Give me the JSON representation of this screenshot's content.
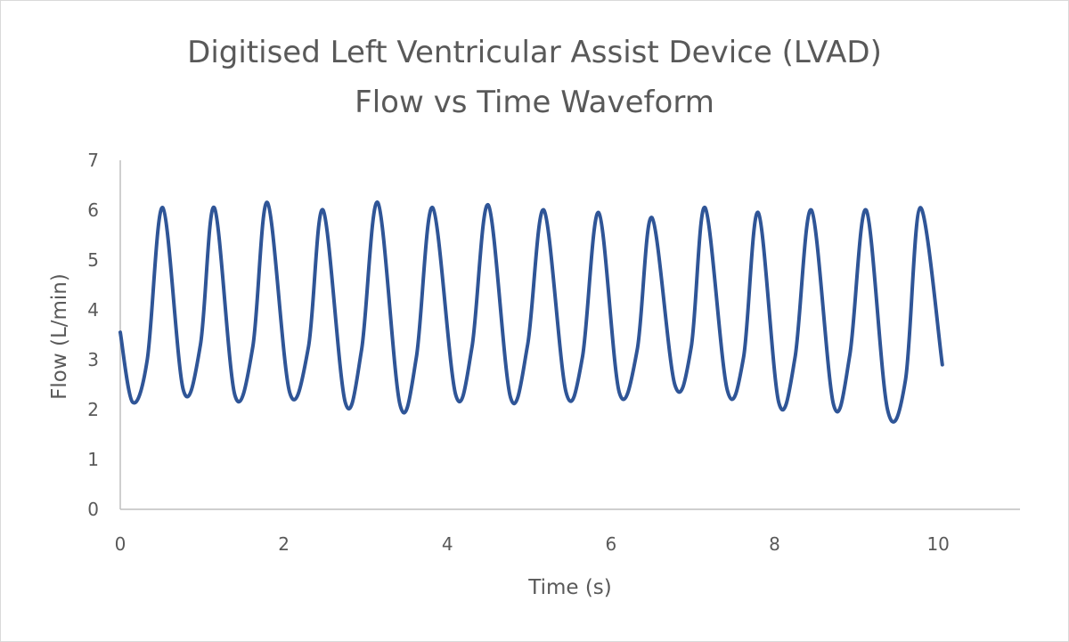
{
  "chart_data": {
    "type": "line",
    "title": "Digitised Left Ventricular Assist Device (LVAD)",
    "subtitle": "Flow vs Time Waveform",
    "xlabel": "Time (s)",
    "ylabel": "Flow (L/min)",
    "xlim": [
      0,
      11
    ],
    "ylim": [
      0,
      7
    ],
    "x_ticks": [
      0,
      2,
      4,
      6,
      8,
      10
    ],
    "y_ticks": [
      0,
      1,
      2,
      3,
      4,
      5,
      6,
      7
    ],
    "grid": false,
    "legend": "none",
    "series_color": "#2f5597",
    "series": [
      {
        "x": [
          0.0,
          0.15,
          0.33,
          0.52,
          0.77,
          0.98,
          1.15,
          1.4,
          1.62,
          1.8,
          2.07,
          2.3,
          2.48,
          2.75,
          2.95,
          3.15,
          3.42,
          3.62,
          3.82,
          4.1,
          4.3,
          4.5,
          4.77,
          4.98,
          5.18,
          5.45,
          5.65,
          5.85,
          6.1,
          6.32,
          6.5,
          6.78,
          6.98,
          7.15,
          7.42,
          7.62,
          7.8,
          8.05,
          8.25,
          8.45,
          8.72,
          8.92,
          9.12,
          9.38,
          9.6,
          9.78,
          10.05
        ],
        "y": [
          3.55,
          2.15,
          3.0,
          6.05,
          2.4,
          3.3,
          6.05,
          2.3,
          3.25,
          6.15,
          2.35,
          3.25,
          6.0,
          2.15,
          3.2,
          6.15,
          2.1,
          3.05,
          6.05,
          2.3,
          3.25,
          6.1,
          2.25,
          3.3,
          6.0,
          2.35,
          3.05,
          5.95,
          2.35,
          3.2,
          5.85,
          2.5,
          3.25,
          6.05,
          2.4,
          3.05,
          5.95,
          2.15,
          3.05,
          6.0,
          2.1,
          3.1,
          6.0,
          2.0,
          2.6,
          6.05,
          2.9
        ]
      }
    ]
  }
}
